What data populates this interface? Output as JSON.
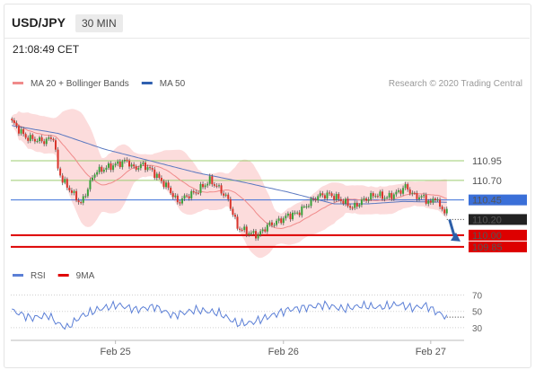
{
  "header": {
    "symbol": "USD/JPY",
    "timeframe": "30 MIN",
    "time": "21:08:49 CET"
  },
  "legend_main": [
    {
      "name": "MA 20 + Bollinger Bands",
      "color": "#f08b8b"
    },
    {
      "name": "MA 50",
      "color": "#3060b0"
    }
  ],
  "legend_rsi": [
    {
      "name": "RSI",
      "color": "#5b7fd6"
    },
    {
      "name": "9MA",
      "color": "#e00000"
    }
  ],
  "credit": "Research © 2020 Trading Central",
  "colors": {
    "up": "#3aa13a",
    "down": "#d9342b",
    "band": "#fcdcdc",
    "resistance": "#9ccc70",
    "pivot": "#3a6fd8",
    "support": "#dd0000"
  },
  "chart_data": {
    "type": "candlestick",
    "symbol": "USD/JPY",
    "timeframe": "30 MIN",
    "ylim": [
      109.7,
      111.65
    ],
    "x_labels": [
      {
        "label": "Feb 25",
        "x": 45
      },
      {
        "label": "Feb 26",
        "x": 118
      },
      {
        "label": "Feb 27",
        "x": 182
      }
    ],
    "n_bars": 197,
    "price_keypoints": [
      [
        0,
        111.45
      ],
      [
        3,
        111.35
      ],
      [
        6,
        111.25
      ],
      [
        10,
        111.22
      ],
      [
        14,
        111.2
      ],
      [
        18,
        111.25
      ],
      [
        19,
        111.05
      ],
      [
        20,
        110.85
      ],
      [
        22,
        110.7
      ],
      [
        26,
        110.55
      ],
      [
        30,
        110.4
      ],
      [
        33,
        110.6
      ],
      [
        36,
        110.8
      ],
      [
        40,
        110.85
      ],
      [
        45,
        110.9
      ],
      [
        50,
        110.95
      ],
      [
        53,
        110.85
      ],
      [
        57,
        110.9
      ],
      [
        61,
        110.82
      ],
      [
        64,
        110.72
      ],
      [
        68,
        110.6
      ],
      [
        72,
        110.42
      ],
      [
        76,
        110.5
      ],
      [
        80,
        110.55
      ],
      [
        86,
        110.7
      ],
      [
        90,
        110.6
      ],
      [
        94,
        110.45
      ],
      [
        98,
        110.1
      ],
      [
        103,
        110.03
      ],
      [
        107,
        110.0
      ],
      [
        111,
        110.12
      ],
      [
        116,
        110.18
      ],
      [
        120,
        110.25
      ],
      [
        124,
        110.28
      ],
      [
        128,
        110.38
      ],
      [
        133,
        110.5
      ],
      [
        138,
        110.52
      ],
      [
        143,
        110.45
      ],
      [
        148,
        110.35
      ],
      [
        153,
        110.45
      ],
      [
        158,
        110.52
      ],
      [
        163,
        110.48
      ],
      [
        168,
        110.55
      ],
      [
        171,
        110.62
      ],
      [
        175,
        110.5
      ],
      [
        179,
        110.48
      ],
      [
        182,
        110.4
      ],
      [
        184,
        110.5
      ],
      [
        186,
        110.35
      ],
      [
        189,
        110.3
      ]
    ],
    "ma50_keypoints": [
      [
        0,
        111.4
      ],
      [
        20,
        111.3
      ],
      [
        40,
        111.1
      ],
      [
        60,
        110.95
      ],
      [
        80,
        110.8
      ],
      [
        100,
        110.68
      ],
      [
        120,
        110.55
      ],
      [
        140,
        110.4
      ],
      [
        155,
        110.4
      ],
      [
        170,
        110.43
      ],
      [
        189,
        110.42
      ]
    ],
    "rsi_keypoints": [
      [
        0,
        51
      ],
      [
        8,
        42
      ],
      [
        16,
        45
      ],
      [
        20,
        35
      ],
      [
        24,
        30
      ],
      [
        30,
        44
      ],
      [
        38,
        53
      ],
      [
        46,
        58
      ],
      [
        54,
        52
      ],
      [
        62,
        56
      ],
      [
        70,
        45
      ],
      [
        80,
        52
      ],
      [
        90,
        48
      ],
      [
        98,
        35
      ],
      [
        104,
        36
      ],
      [
        112,
        44
      ],
      [
        120,
        52
      ],
      [
        128,
        55
      ],
      [
        136,
        58
      ],
      [
        144,
        53
      ],
      [
        152,
        57
      ],
      [
        160,
        55
      ],
      [
        168,
        59
      ],
      [
        174,
        54
      ],
      [
        180,
        57
      ],
      [
        184,
        50
      ],
      [
        189,
        43
      ]
    ],
    "resistance": [
      110.95,
      110.7
    ],
    "pivot": 110.45,
    "last_price": 110.2,
    "support": [
      110.0,
      109.85
    ],
    "rsi_levels": [
      70,
      50,
      30
    ],
    "ylabels": [
      {
        "label": "110.95",
        "type": "resistance",
        "value": 110.95
      },
      {
        "label": "110.70",
        "type": "resistance",
        "value": 110.7
      },
      {
        "label": "110.45",
        "type": "pivot",
        "value": 110.45
      },
      {
        "label": "110.20",
        "type": "last",
        "value": 110.2
      },
      {
        "label": "110.00",
        "type": "support",
        "value": 110.0
      },
      {
        "label": "109.85",
        "type": "support",
        "value": 109.85
      }
    ],
    "rsi_labels": [
      "70",
      "50",
      "30"
    ],
    "forecast_arrow": {
      "from_bar": 189,
      "from": 110.2,
      "to": 109.92
    }
  }
}
